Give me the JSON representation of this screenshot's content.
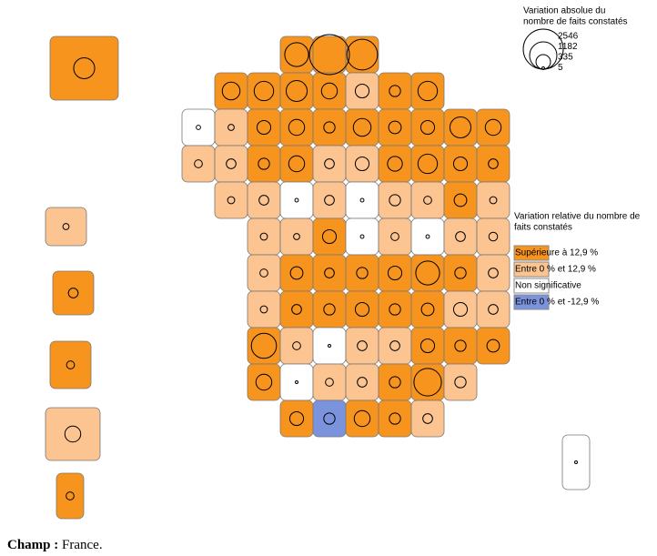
{
  "size_legend": {
    "title": [
      "Variation absolue du",
      "nombre de faits constatés"
    ],
    "values": [
      2546,
      1182,
      335,
      5
    ]
  },
  "class_legend": {
    "title": [
      "Variation relative du nombre de",
      "faits constatés"
    ],
    "items": [
      {
        "label": "Supérieure à 12,9 %",
        "color": "#f7941d"
      },
      {
        "label": "Entre 0 % et 12,9 %",
        "color": "#fbc490"
      },
      {
        "label": "Non significative",
        "color": "#ffffff"
      },
      {
        "label": "Entre 0 % et -12,9 %",
        "color": "#7b93dd"
      }
    ]
  },
  "map": {
    "classes": [
      0,
      0,
      0,
      0,
      0,
      0,
      0,
      1,
      0,
      0,
      2,
      1,
      0,
      0,
      0,
      0,
      0,
      0,
      0,
      0,
      1,
      1,
      0,
      0,
      1,
      1,
      0,
      0,
      0,
      0,
      1,
      1,
      2,
      1,
      2,
      1,
      1,
      0,
      1,
      1,
      1,
      0,
      2,
      1,
      2,
      1,
      1,
      1,
      0,
      0,
      0,
      0,
      0,
      0,
      1,
      1,
      0,
      0,
      0,
      0,
      0,
      1,
      1,
      0,
      1,
      2,
      1,
      1,
      0,
      0,
      0,
      0,
      2,
      1,
      1,
      0,
      0,
      1,
      0,
      3,
      0,
      0,
      1,
      0,
      1,
      0,
      0,
      1,
      0,
      2
    ],
    "values": [
      900,
      2546,
      1500,
      500,
      600,
      700,
      400,
      300,
      200,
      600,
      30,
      60,
      300,
      400,
      200,
      500,
      250,
      300,
      700,
      400,
      100,
      150,
      200,
      400,
      150,
      300,
      350,
      600,
      300,
      150,
      80,
      150,
      20,
      150,
      20,
      200,
      100,
      250,
      80,
      80,
      60,
      300,
      20,
      100,
      20,
      150,
      120,
      100,
      250,
      150,
      200,
      300,
      900,
      200,
      150,
      80,
      150,
      200,
      300,
      200,
      250,
      300,
      150,
      1000,
      100,
      10,
      150,
      150,
      300,
      200,
      250,
      400,
      10,
      100,
      150,
      200,
      1200,
      200,
      300,
      200,
      400,
      200,
      150,
      700,
      60,
      150,
      100,
      400,
      100,
      10
    ]
  },
  "footer": {
    "label": "Champ :",
    "text": "France."
  }
}
